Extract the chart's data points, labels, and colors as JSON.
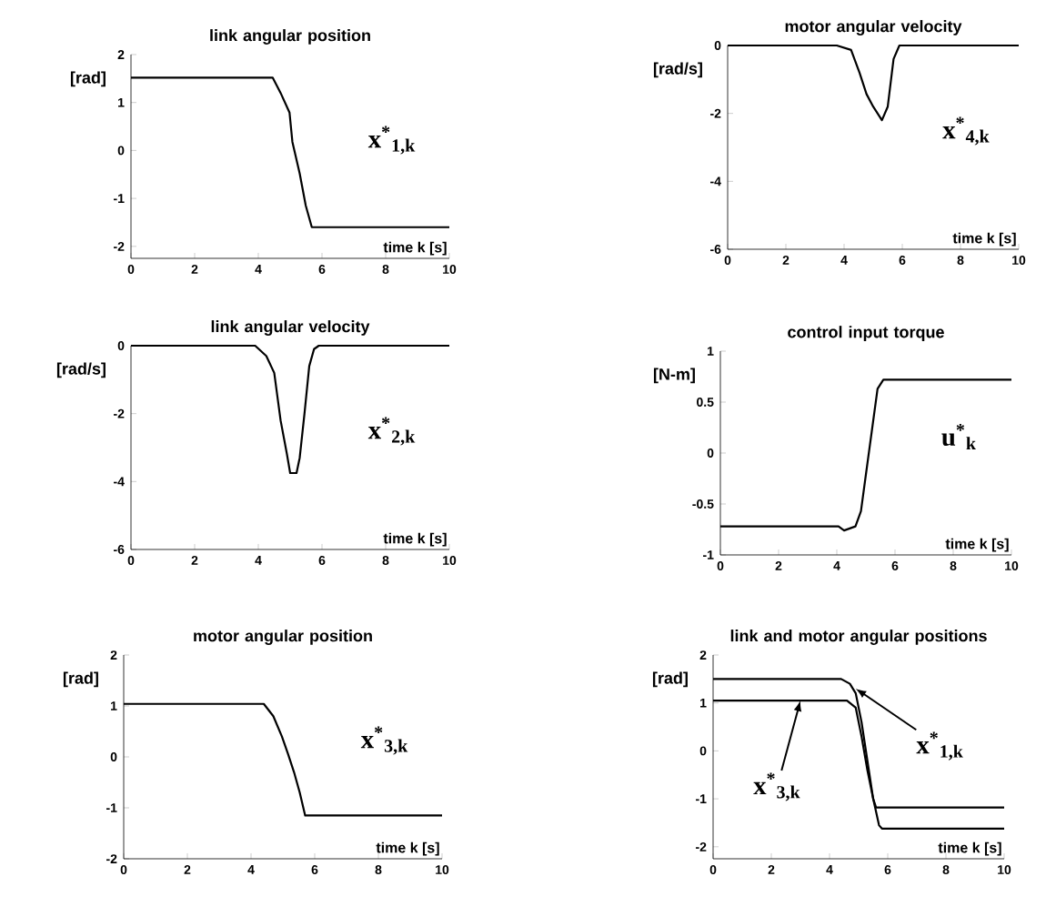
{
  "chart_data": [
    {
      "type": "line",
      "title": "link angular position",
      "xlabel": "time k [s]",
      "ylabel": "[rad]",
      "xlim": [
        0,
        10
      ],
      "xticks": [
        0,
        2,
        4,
        6,
        8,
        10
      ],
      "ylim": [
        -2.25,
        2
      ],
      "yticks": [
        -2,
        -1,
        0,
        1,
        2
      ],
      "annotations": [
        "x$^{*}$$_{1,k}$"
      ],
      "series": [
        {
          "color": "#000000",
          "x": [
            0,
            4.45,
            4.7,
            4.98,
            5.07,
            5.3,
            5.49,
            5.68,
            10
          ],
          "values": [
            1.52,
            1.52,
            1.2,
            0.79,
            0.18,
            -0.48,
            -1.15,
            -1.6,
            -1.6
          ]
        }
      ]
    },
    {
      "type": "line",
      "title": "motor angular velocity",
      "xlabel": "time k [s]",
      "ylabel": "[rad/s]",
      "xlim": [
        0,
        10
      ],
      "xticks": [
        0,
        2,
        4,
        6,
        8,
        10
      ],
      "ylim": [
        -6,
        0
      ],
      "yticks": [
        -6,
        -4,
        -2,
        0
      ],
      "annotations": [
        "x$^{*}$$_{4,k}$"
      ],
      "series": [
        {
          "color": "#000000",
          "x": [
            0,
            3.75,
            4.24,
            4.53,
            4.77,
            5.0,
            5.3,
            5.5,
            5.7,
            5.9,
            10
          ],
          "values": [
            0,
            0,
            -0.13,
            -0.8,
            -1.43,
            -1.8,
            -2.2,
            -1.8,
            -0.4,
            0,
            0
          ]
        }
      ]
    },
    {
      "type": "line",
      "title": "link angular velocity",
      "xlabel": "time k [s]",
      "ylabel": "[rad/s]",
      "xlim": [
        0,
        10
      ],
      "xticks": [
        0,
        2,
        4,
        6,
        8,
        10
      ],
      "ylim": [
        -6,
        0
      ],
      "yticks": [
        -6,
        -4,
        -2,
        0
      ],
      "annotations": [
        "x$^{*}$$_{2,k}$"
      ],
      "series": [
        {
          "color": "#000000",
          "x": [
            0,
            3.9,
            4.25,
            4.5,
            4.7,
            4.9,
            5.0,
            5.2,
            5.3,
            5.45,
            5.6,
            5.75,
            5.9,
            10
          ],
          "values": [
            0,
            0,
            -0.3,
            -0.8,
            -2.2,
            -3.2,
            -3.75,
            -3.75,
            -3.3,
            -2.0,
            -0.6,
            -0.1,
            0,
            0
          ]
        }
      ]
    },
    {
      "type": "line",
      "title": "control input torque",
      "xlabel": "time k [s]",
      "ylabel": "[N-m]",
      "xlim": [
        0,
        10
      ],
      "xticks": [
        0,
        2,
        4,
        6,
        8,
        10
      ],
      "ylim": [
        -1,
        1
      ],
      "yticks": [
        -1,
        -0.5,
        0,
        0.5,
        1
      ],
      "annotations": [
        "u$^{*}$$_{k}$"
      ],
      "series": [
        {
          "color": "#000000",
          "x": [
            0,
            4.06,
            4.25,
            4.64,
            4.83,
            5.0,
            5.2,
            5.4,
            5.6,
            10
          ],
          "values": [
            -0.72,
            -0.72,
            -0.76,
            -0.72,
            -0.57,
            -0.21,
            0.21,
            0.63,
            0.72,
            0.72
          ]
        }
      ]
    },
    {
      "type": "line",
      "title": "motor angular position",
      "xlabel": "time k [s]",
      "ylabel": "[rad]",
      "xlim": [
        0,
        10
      ],
      "xticks": [
        0,
        2,
        4,
        6,
        8,
        10
      ],
      "ylim": [
        -2,
        2
      ],
      "yticks": [
        -2,
        -1,
        0,
        1,
        2
      ],
      "annotations": [
        "x$^{*}$$_{3,k}$"
      ],
      "series": [
        {
          "color": "#000000",
          "x": [
            0,
            4.4,
            4.7,
            4.97,
            5.16,
            5.35,
            5.53,
            5.7,
            10
          ],
          "values": [
            1.04,
            1.04,
            0.8,
            0.4,
            0.06,
            -0.3,
            -0.7,
            -1.15,
            -1.15
          ]
        }
      ]
    },
    {
      "type": "line",
      "title": "link and motor angular positions",
      "xlabel": "time k [s]",
      "ylabel": "[rad]",
      "xlim": [
        0,
        10
      ],
      "xticks": [
        0,
        2,
        4,
        6,
        8,
        10
      ],
      "ylim": [
        -2.25,
        2
      ],
      "yticks": [
        -2,
        -1,
        0,
        1,
        2
      ],
      "annotations": [
        {
          "text": "x$^{*}$$_{1,k}$",
          "x": 4.9,
          "y": 1.3
        },
        {
          "text": "x$^{*}$$_{3,k}$",
          "x": 3.0,
          "y": 1.05
        }
      ],
      "series": [
        {
          "color": "#000000",
          "x": [
            0,
            4.4,
            4.7,
            4.9,
            5.1,
            5.3,
            5.5,
            5.7,
            5.8,
            10
          ],
          "values": [
            1.5,
            1.5,
            1.4,
            1.2,
            0.6,
            -0.2,
            -1.0,
            -1.55,
            -1.62,
            -1.62
          ]
        },
        {
          "color": "#000000",
          "x": [
            0,
            4.6,
            4.9,
            5.1,
            5.3,
            5.5,
            5.6,
            10
          ],
          "values": [
            1.05,
            1.05,
            0.9,
            0.3,
            -0.4,
            -1.0,
            -1.18,
            -1.18
          ]
        }
      ]
    }
  ]
}
